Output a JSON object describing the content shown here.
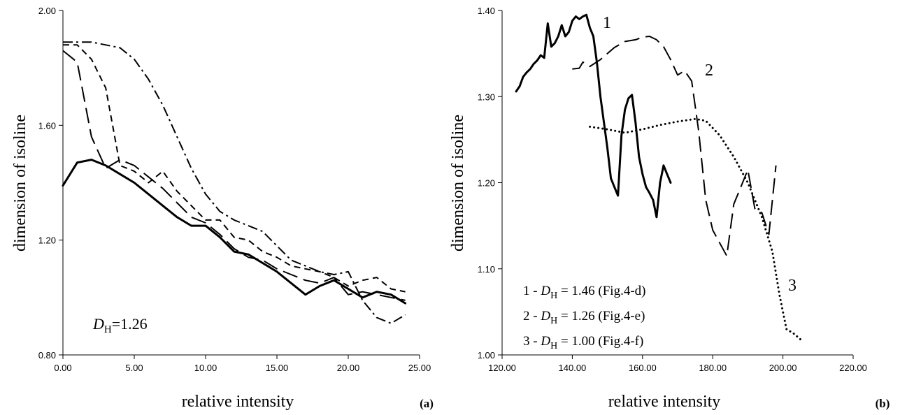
{
  "chart_data": [
    {
      "type": "line",
      "panel_label": "(a)",
      "xlabel": "relative intensity",
      "ylabel": "dimension of isoline",
      "xlim": [
        0,
        25
      ],
      "ylim": [
        0.8,
        2.0
      ],
      "x_ticks": [
        "0.00",
        "5.00",
        "10.00",
        "15.00",
        "20.00",
        "25.00"
      ],
      "y_ticks": [
        "0.80",
        "1.20",
        "1.60",
        "2.00"
      ],
      "annotation": {
        "symbol": "D",
        "subscript": "H",
        "text": "=1.26"
      },
      "series": [
        {
          "style": "solid-thick",
          "x": [
            0,
            1,
            2,
            3,
            4,
            5,
            6,
            7,
            8,
            9,
            10,
            11,
            12,
            13,
            14,
            15,
            16,
            17,
            18,
            19,
            20,
            21,
            22,
            23,
            24
          ],
          "y": [
            1.39,
            1.47,
            1.48,
            1.46,
            1.43,
            1.4,
            1.36,
            1.32,
            1.28,
            1.25,
            1.25,
            1.21,
            1.16,
            1.15,
            1.12,
            1.09,
            1.05,
            1.01,
            1.04,
            1.06,
            1.03,
            1.0,
            1.02,
            1.01,
            0.98
          ]
        },
        {
          "style": "long-dash",
          "x": [
            0,
            1,
            2,
            3,
            4,
            5,
            6,
            7,
            8,
            9,
            10,
            11,
            12,
            13,
            14,
            15,
            16,
            17,
            18,
            19,
            20,
            21,
            22,
            23,
            24
          ],
          "y": [
            1.86,
            1.82,
            1.56,
            1.45,
            1.48,
            1.46,
            1.42,
            1.38,
            1.33,
            1.28,
            1.26,
            1.22,
            1.17,
            1.14,
            1.13,
            1.1,
            1.08,
            1.06,
            1.05,
            1.07,
            1.01,
            1.02,
            1.01,
            1.0,
            0.99
          ]
        },
        {
          "style": "short-dash",
          "x": [
            0,
            1,
            2,
            3,
            4,
            5,
            6,
            7,
            8,
            9,
            10,
            11,
            12,
            13,
            14,
            15,
            16,
            17,
            18,
            19,
            20,
            21,
            22,
            23,
            24
          ],
          "y": [
            1.88,
            1.88,
            1.83,
            1.73,
            1.46,
            1.44,
            1.4,
            1.44,
            1.37,
            1.32,
            1.27,
            1.27,
            1.21,
            1.2,
            1.16,
            1.14,
            1.11,
            1.1,
            1.09,
            1.07,
            1.04,
            1.06,
            1.07,
            1.03,
            1.02
          ]
        },
        {
          "style": "dash-dot",
          "x": [
            0,
            1,
            2,
            3,
            4,
            5,
            6,
            7,
            8,
            9,
            10,
            11,
            12,
            13,
            14,
            15,
            16,
            17,
            18,
            19,
            20,
            21,
            22,
            23,
            24
          ],
          "y": [
            1.89,
            1.89,
            1.89,
            1.88,
            1.87,
            1.83,
            1.76,
            1.67,
            1.56,
            1.45,
            1.36,
            1.3,
            1.27,
            1.25,
            1.23,
            1.18,
            1.13,
            1.11,
            1.09,
            1.08,
            1.09,
            0.99,
            0.93,
            0.91,
            0.94
          ]
        }
      ]
    },
    {
      "type": "line",
      "panel_label": "(b)",
      "xlabel": "relative intensity",
      "ylabel": "dimension of isoline",
      "xlim": [
        120,
        220
      ],
      "ylim": [
        1.0,
        1.4
      ],
      "x_ticks": [
        "120.00",
        "140.00",
        "160.00",
        "180.00",
        "200.00",
        "220.00"
      ],
      "y_ticks": [
        "1.00",
        "1.10",
        "1.20",
        "1.30",
        "1.40"
      ],
      "legend": [
        {
          "prefix": "1 - ",
          "symbol": "D",
          "subscript": "H",
          "text": " = 1.46 (Fig.4-d)"
        },
        {
          "prefix": "2 - ",
          "symbol": "D",
          "subscript": "H",
          "text": " = 1.26 (Fig.4-e)"
        },
        {
          "prefix": "3 - ",
          "symbol": "D",
          "subscript": "H",
          "text": " = 1.00 (Fig.4-f)"
        }
      ],
      "series": [
        {
          "name": "1",
          "style": "solid-thick",
          "x": [
            124,
            125,
            126,
            127,
            128,
            129,
            130,
            131,
            132,
            133,
            134,
            135,
            136,
            137,
            138,
            139,
            140,
            141,
            142,
            143,
            144,
            145,
            146,
            147,
            148,
            149,
            150,
            151,
            152,
            153,
            154,
            155,
            156,
            157,
            158,
            159,
            160,
            161,
            162,
            163,
            164,
            165,
            166,
            167,
            168
          ],
          "y": [
            1.306,
            1.312,
            1.323,
            1.328,
            1.332,
            1.338,
            1.342,
            1.348,
            1.345,
            1.385,
            1.358,
            1.362,
            1.37,
            1.383,
            1.37,
            1.375,
            1.388,
            1.393,
            1.39,
            1.393,
            1.395,
            1.38,
            1.37,
            1.34,
            1.3,
            1.27,
            1.24,
            1.205,
            1.195,
            1.185,
            1.255,
            1.285,
            1.298,
            1.302,
            1.27,
            1.23,
            1.21,
            1.195,
            1.188,
            1.18,
            1.16,
            1.2,
            1.22,
            1.21,
            1.2
          ]
        },
        {
          "name": "2",
          "style": "long-dash",
          "x": [
            140,
            142,
            143,
            145,
            148,
            150,
            152,
            155,
            158,
            160,
            162,
            164,
            166,
            168,
            170,
            172,
            174,
            176,
            178,
            180,
            182,
            184,
            186,
            188,
            190,
            192,
            194,
            196,
            198
          ],
          "y": [
            1.332,
            1.333,
            1.34,
            1.335,
            1.343,
            1.35,
            1.357,
            1.364,
            1.366,
            1.369,
            1.37,
            1.366,
            1.358,
            1.343,
            1.325,
            1.33,
            1.318,
            1.26,
            1.18,
            1.145,
            1.13,
            1.115,
            1.175,
            1.195,
            1.215,
            1.17,
            1.165,
            1.14,
            1.22
          ]
        },
        {
          "name": "3",
          "style": "dotted",
          "x": [
            145,
            150,
            155,
            160,
            165,
            170,
            175,
            178,
            182,
            186,
            190,
            194,
            197,
            199,
            201,
            203,
            205
          ],
          "y": [
            1.265,
            1.262,
            1.258,
            1.262,
            1.267,
            1.271,
            1.274,
            1.272,
            1.255,
            1.23,
            1.2,
            1.16,
            1.12,
            1.07,
            1.03,
            1.025,
            1.018
          ]
        }
      ]
    }
  ]
}
